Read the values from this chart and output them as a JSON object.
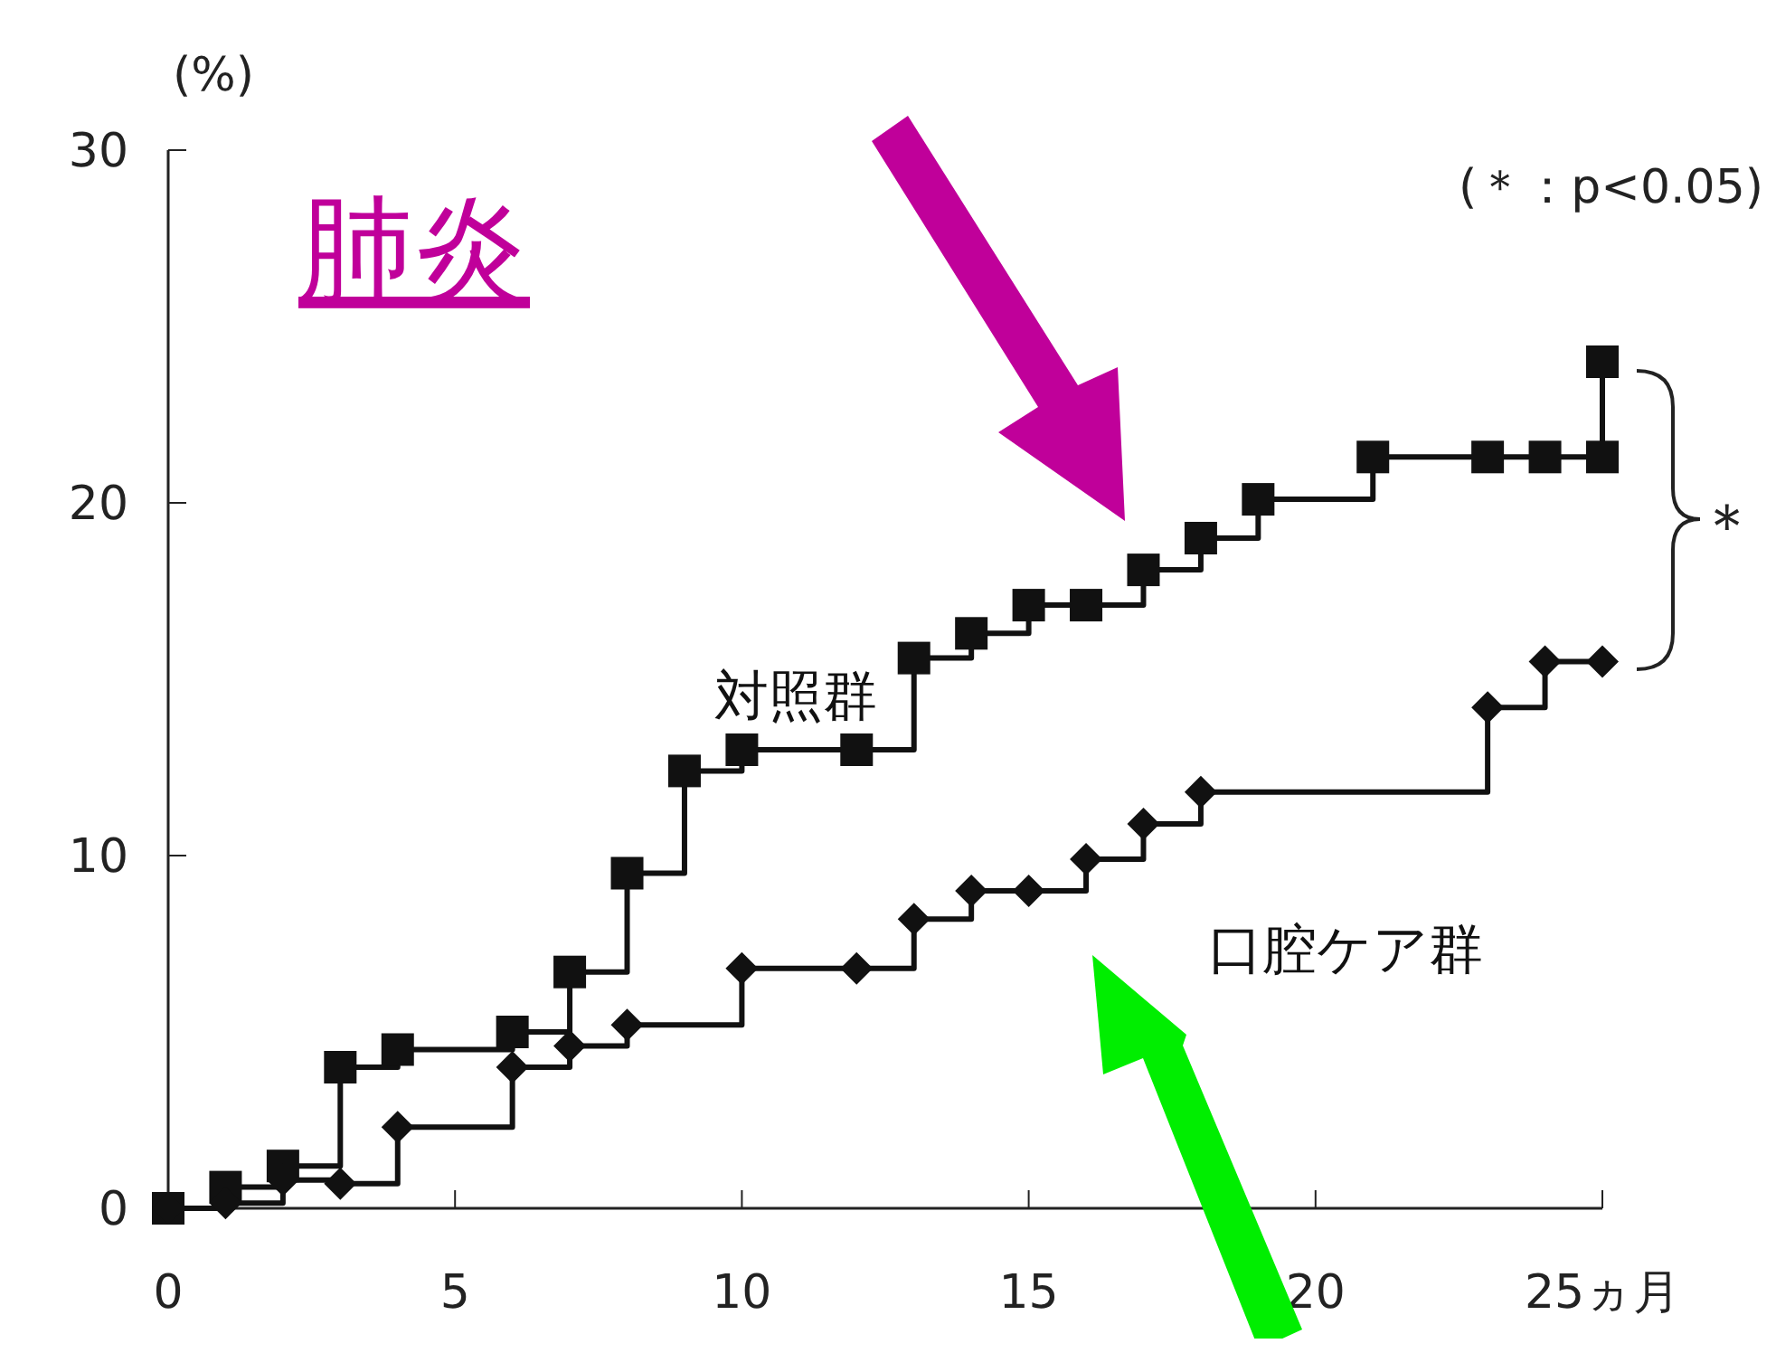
{
  "chart_data": {
    "type": "step",
    "title": "肺炎",
    "ylabel": "(%)",
    "xlim": [
      0,
      25
    ],
    "ylim": [
      0,
      30
    ],
    "xticks": [
      0,
      5,
      10,
      15,
      20,
      {
        "value": 25,
        "label": "25ヵ月"
      }
    ],
    "yticks": [
      0,
      10,
      20,
      30
    ],
    "grid": false,
    "line_style": "solid",
    "series": [
      {
        "name": "対照群",
        "color": "#111111",
        "marker": "square",
        "x": [
          0,
          1,
          2,
          3,
          4,
          6,
          7,
          8,
          9,
          10,
          12,
          13,
          14,
          15,
          16,
          17,
          18,
          19,
          21,
          23,
          24,
          25,
          25
        ],
        "values": [
          0,
          0.6,
          1.2,
          4.0,
          4.5,
          5.0,
          6.7,
          9.5,
          12.4,
          13.0,
          13.0,
          15.6,
          16.3,
          17.1,
          17.1,
          18.1,
          19.0,
          20.1,
          21.3,
          21.3,
          21.3,
          21.3,
          24.0
        ]
      },
      {
        "name": "口腔ケア群",
        "color": "#111111",
        "marker": "diamond",
        "x": [
          0,
          1,
          2,
          3,
          4,
          6,
          7,
          8,
          10,
          12,
          13,
          14,
          15,
          16,
          17,
          18,
          23,
          24,
          25
        ],
        "values": [
          0,
          0.15,
          0.8,
          0.7,
          2.3,
          4.0,
          4.6,
          5.2,
          6.8,
          6.8,
          8.2,
          9.0,
          9.0,
          9.9,
          10.9,
          11.8,
          14.2,
          15.5,
          15.5
        ]
      }
    ],
    "annotations": [
      "(＊：p<0.05)",
      "＊"
    ]
  }
}
